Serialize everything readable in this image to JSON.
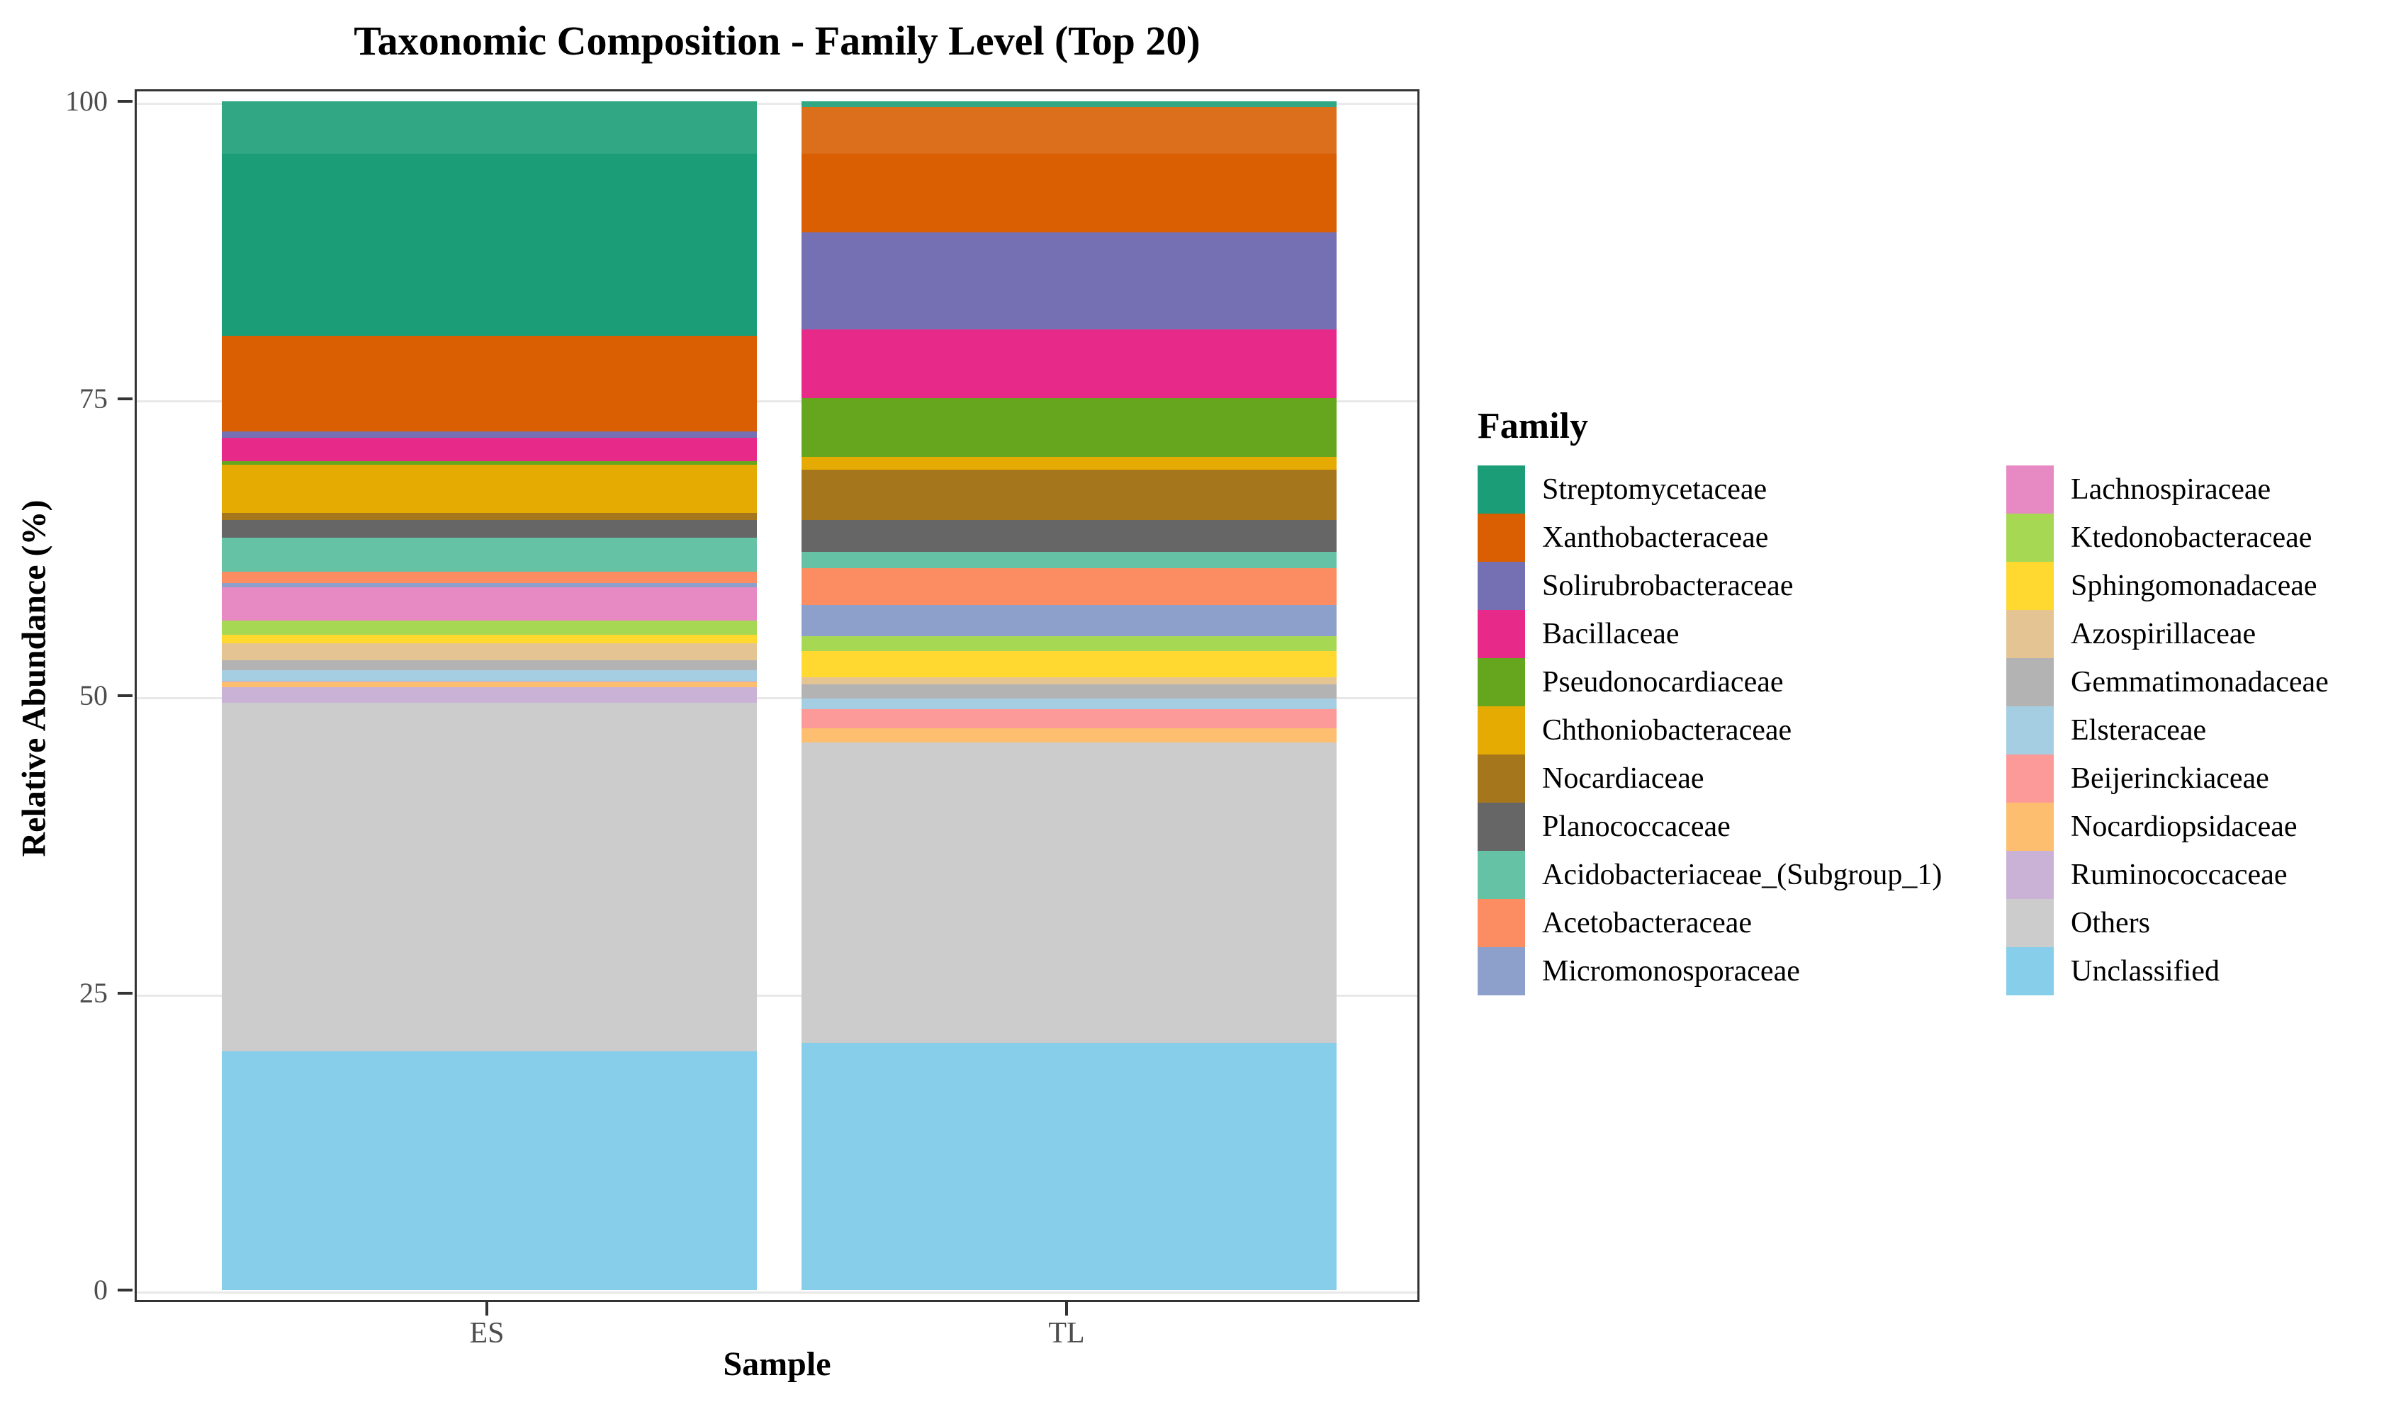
{
  "title": "Taxonomic Composition - Family Level (Top 20)",
  "axes": {
    "y_label": "Relative Abundance (%)",
    "x_label": "Sample",
    "y_ticks": [
      0,
      25,
      50,
      75,
      100
    ],
    "x_categories": [
      "ES",
      "TL"
    ],
    "grid": true
  },
  "legend": {
    "title": "Family",
    "position": "right",
    "columns": 2
  },
  "chart_data": {
    "type": "bar",
    "stacked": true,
    "title": "Taxonomic Composition - Family Level (Top 20)",
    "xlabel": "Sample",
    "ylabel": "Relative Abundance (%)",
    "ylim": [
      0,
      100
    ],
    "grid": true,
    "legend_position": "right",
    "categories": [
      "ES",
      "TL"
    ],
    "series": [
      {
        "name": "Streptomycetaceae",
        "color": "#1B9E77",
        "values": [
          19.7,
          0.5
        ]
      },
      {
        "name": "Xanthobacteraceae",
        "color": "#D95F02",
        "values": [
          8.1,
          10.5
        ]
      },
      {
        "name": "Solirubrobacteraceae",
        "color": "#7570B3",
        "values": [
          0.5,
          8.2
        ]
      },
      {
        "name": "Bacillaceae",
        "color": "#E7298A",
        "values": [
          2.0,
          5.8
        ]
      },
      {
        "name": "Pseudonocardiaceae",
        "color": "#66A61E",
        "values": [
          0.25,
          4.9
        ]
      },
      {
        "name": "Chthoniobacteraceae",
        "color": "#E6AB02",
        "values": [
          4.05,
          1.1
        ]
      },
      {
        "name": "Nocardiaceae",
        "color": "#A6761D",
        "values": [
          0.6,
          4.2
        ]
      },
      {
        "name": "Planococcaceae",
        "color": "#666666",
        "values": [
          1.5,
          2.7
        ]
      },
      {
        "name": "Acidobacteriaceae_(Subgroup_1)",
        "color": "#66C2A5",
        "values": [
          2.85,
          1.4
        ]
      },
      {
        "name": "Acetobacteraceae",
        "color": "#FC8D62",
        "values": [
          1.0,
          3.1
        ]
      },
      {
        "name": "Micromonosporaceae",
        "color": "#8DA0CB",
        "values": [
          0.35,
          2.6
        ]
      },
      {
        "name": "Lachnospiraceae",
        "color": "#E78AC3",
        "values": [
          2.8,
          0.0
        ]
      },
      {
        "name": "Ktedonobacteraceae",
        "color": "#A6D854",
        "values": [
          1.2,
          1.25
        ]
      },
      {
        "name": "Sphingomonadaceae",
        "color": "#FFD92F",
        "values": [
          0.7,
          2.2
        ]
      },
      {
        "name": "Azospirillaceae",
        "color": "#E5C494",
        "values": [
          1.45,
          0.6
        ]
      },
      {
        "name": "Gemmatimonadaceae",
        "color": "#B3B3B3",
        "values": [
          0.8,
          1.2
        ]
      },
      {
        "name": "Elsteraceae",
        "color": "#A6CEE3",
        "values": [
          0.95,
          0.9
        ]
      },
      {
        "name": "Beijerinckiaceae",
        "color": "#FB9A99",
        "values": [
          0.1,
          1.6
        ]
      },
      {
        "name": "Nocardiopsidaceae",
        "color": "#FDBF6F",
        "values": [
          0.4,
          1.2
        ]
      },
      {
        "name": "Ruminococcaceae",
        "color": "#CAB2D6",
        "values": [
          1.3,
          0.0
        ]
      },
      {
        "name": "Others",
        "color": "#CCCCCC",
        "values": [
          29.3,
          25.25
        ]
      },
      {
        "name": "Unclassified",
        "color": "#87CEEB",
        "values": [
          20.1,
          20.8
        ]
      }
    ]
  },
  "style": {
    "panel_border_color": "#333333",
    "gridline_color": "#E8E8E8",
    "tick_color": "#333333",
    "tick_label_color": "#4D4D4D"
  }
}
